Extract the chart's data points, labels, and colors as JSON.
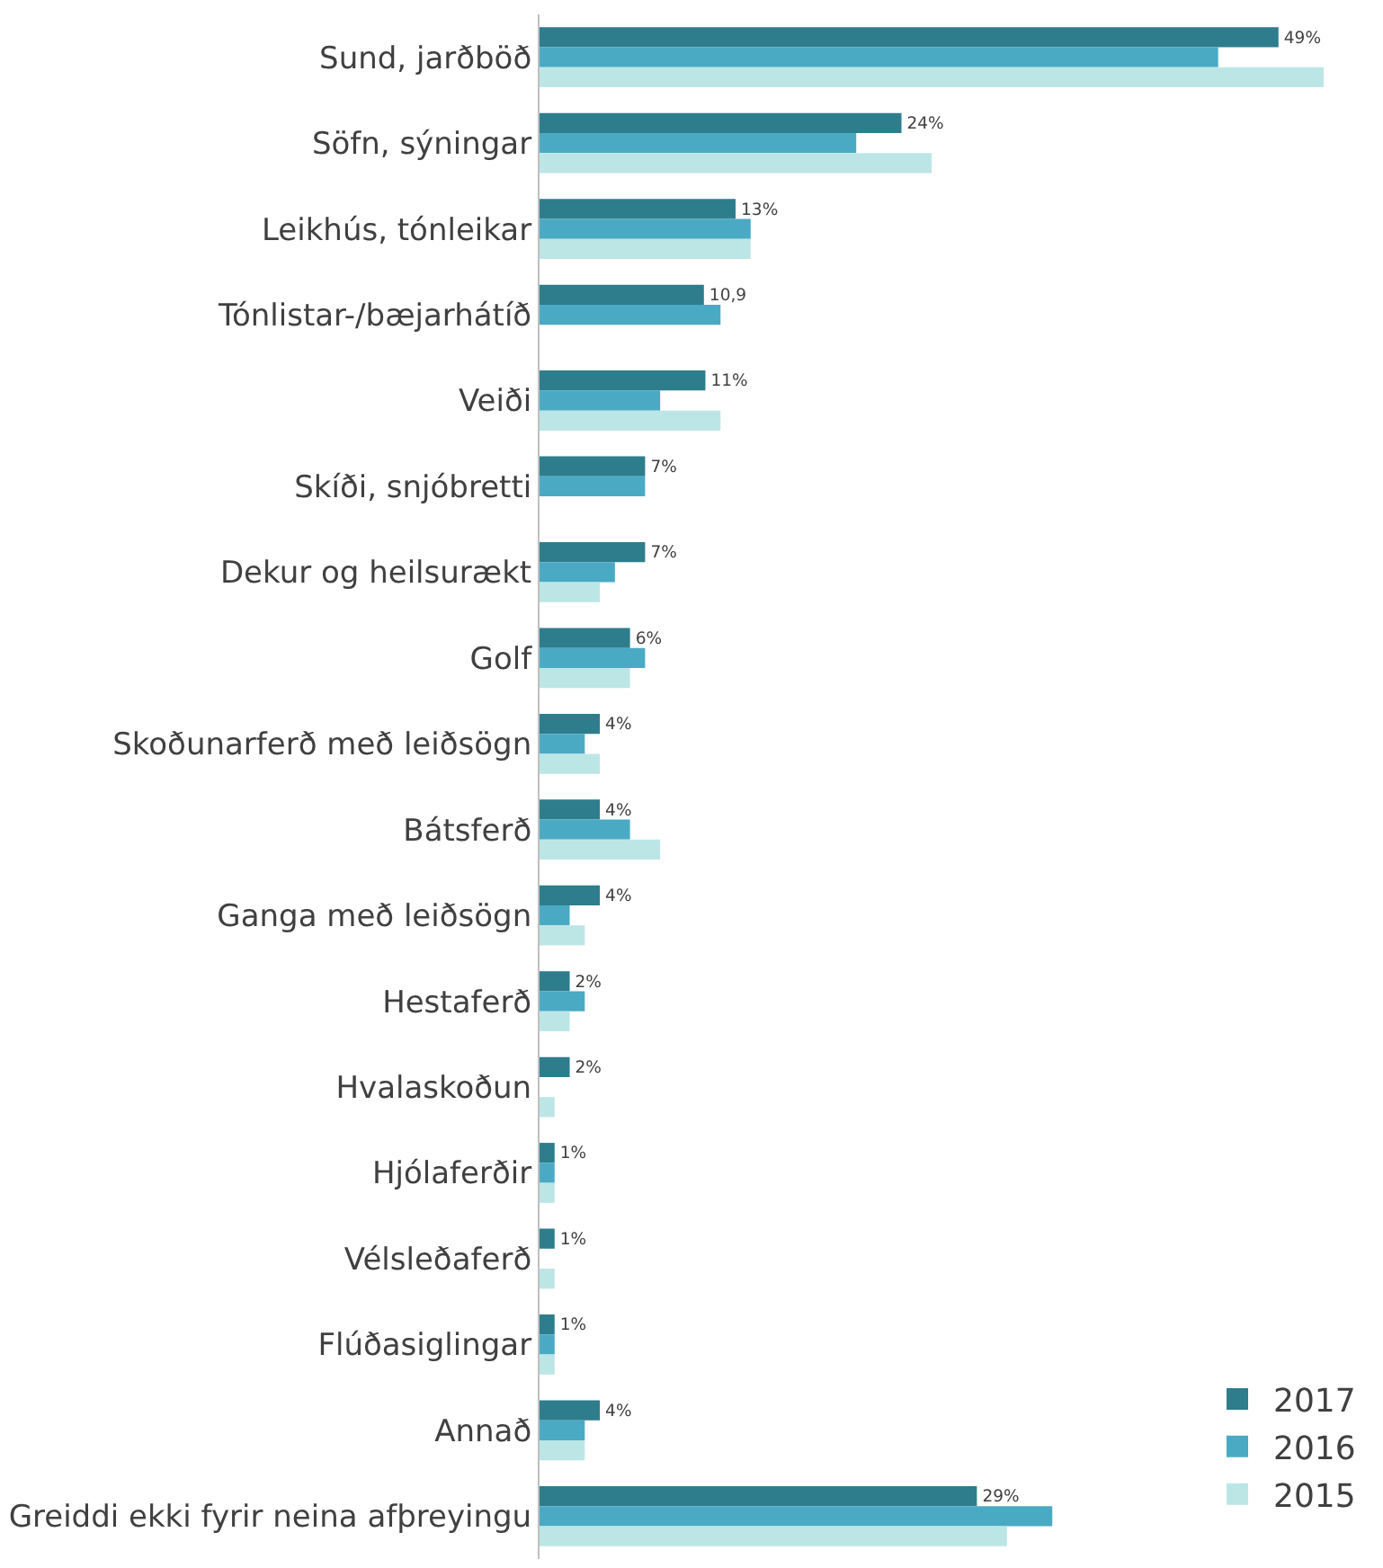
{
  "chart_data": {
    "type": "bar",
    "orientation": "horizontal",
    "categories": [
      "Sund, jarðböð",
      "Söfn, sýningar",
      "Leikhús, tónleikar",
      "Tónlistar-/bæjarhátíð",
      "Veiði",
      "Skíði, snjóbretti",
      "Dekur og heilsurækt",
      "Golf",
      "Skoðunarferð með leiðsögn",
      "Bátsferð",
      "Ganga með leiðsögn",
      "Hestaferð",
      "Hvalaskoðun",
      "Hjólaferðir",
      "Vélsleðaferð",
      "Flúðasiglingar",
      "Annað",
      "Greiddi ekki fyrir neina afþreyingu"
    ],
    "series": [
      {
        "name": "2017",
        "color": "#2e7d8c",
        "values": [
          49,
          24,
          13,
          10.9,
          11,
          7,
          7,
          6,
          4,
          4,
          4,
          2,
          2,
          1,
          1,
          1,
          4,
          29
        ],
        "value_labels": [
          "49%",
          "24%",
          "13%",
          "10,9",
          "11%",
          "7%",
          "7%",
          "6%",
          "4%",
          "4%",
          "4%",
          "2%",
          "2%",
          "1%",
          "1%",
          "1%",
          "4%",
          "29%"
        ]
      },
      {
        "name": "2016",
        "color": "#4aaac4",
        "values": [
          45,
          21,
          14,
          12,
          8,
          7,
          5,
          7,
          3,
          6,
          2,
          3,
          null,
          1,
          null,
          1,
          3,
          34
        ]
      },
      {
        "name": "2015",
        "color": "#bce6e6",
        "values": [
          52,
          26,
          14,
          null,
          12,
          null,
          4,
          6,
          4,
          8,
          3,
          2,
          1,
          1,
          1,
          1,
          3,
          31
        ]
      }
    ],
    "tick_labels": "y",
    "legend": "bottom right"
  }
}
